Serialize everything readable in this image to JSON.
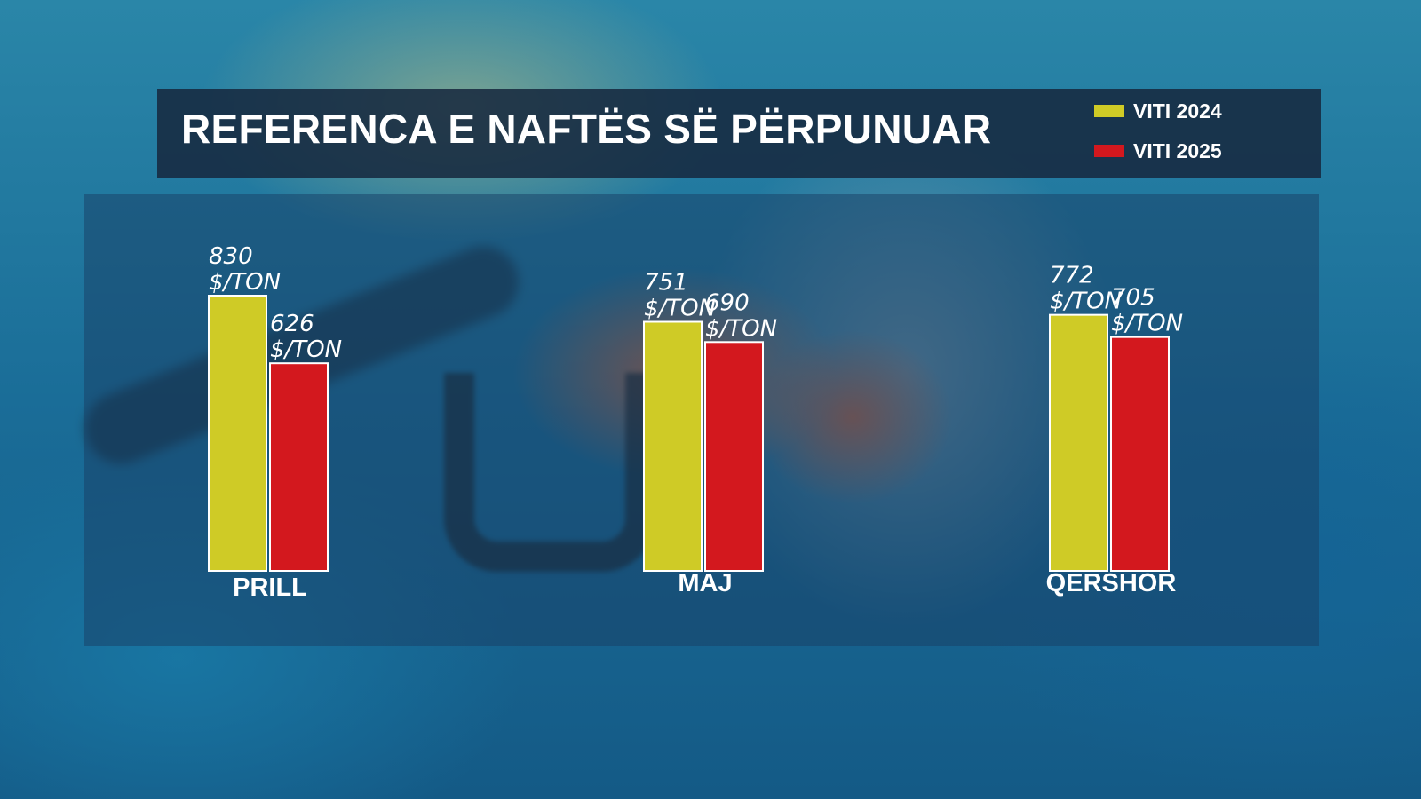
{
  "title": "REFERENCA E NAFTËS SË PËRPUNUAR",
  "colors": {
    "viti_2024": "#cfcb26",
    "viti_2025": "#d3181e"
  },
  "legend": [
    {
      "label": "VITI 2024",
      "color": "#cfcb26"
    },
    {
      "label": "VITI 2025",
      "color": "#d3181e"
    }
  ],
  "chart_data": {
    "type": "bar",
    "title": "REFERENCA E NAFTËS SË PËRPUNUAR",
    "categories": [
      "PRILL",
      "MAJ",
      "QERSHOR"
    ],
    "unit": "$/TON",
    "series": [
      {
        "name": "VITI 2024",
        "values": [
          830,
          751,
          772
        ]
      },
      {
        "name": "VITI 2025",
        "values": [
          626,
          690,
          705
        ]
      }
    ],
    "ylim": [
      0,
      1000
    ],
    "grid": false,
    "legend_position": "top-right"
  }
}
